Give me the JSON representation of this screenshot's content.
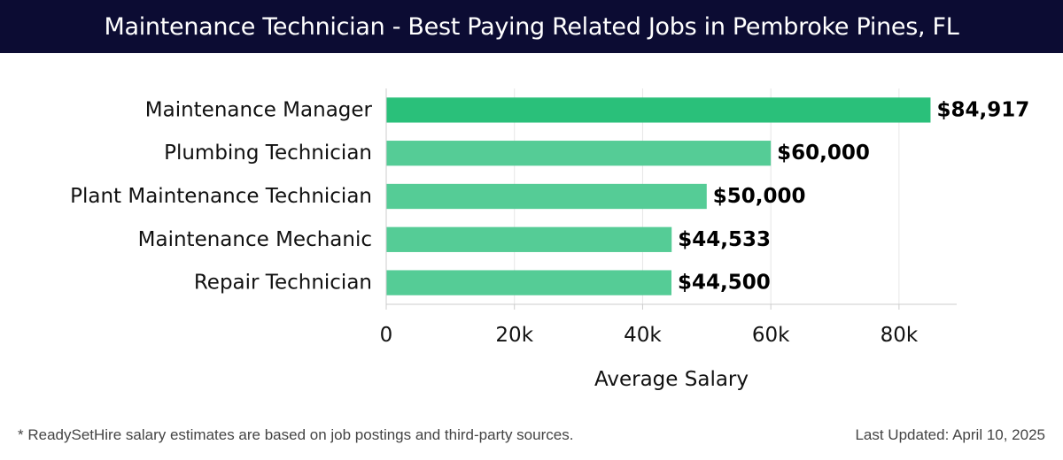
{
  "header": {
    "title": "Maintenance Technician - Best Paying Related Jobs in Pembroke Pines, FL"
  },
  "chart_data": {
    "type": "bar",
    "orientation": "horizontal",
    "categories": [
      "Maintenance Manager",
      "Plumbing Technician",
      "Plant Maintenance Technician",
      "Maintenance Mechanic",
      "Repair Technician"
    ],
    "values": [
      84917,
      60000,
      50000,
      44533,
      44500
    ],
    "data_labels": [
      "$84,917",
      "$60,000",
      "$50,000",
      "$44,533",
      "$44,500"
    ],
    "xlabel": "Average Salary",
    "ylabel": "",
    "xlim": [
      0,
      89000
    ],
    "xticks": [
      0,
      20000,
      40000,
      60000,
      80000
    ],
    "xtick_labels": [
      "0",
      "20k",
      "40k",
      "60k",
      "80k"
    ],
    "grid": "vertical",
    "colors": {
      "highlight": "#2ac07a",
      "bar": "#55cc96"
    }
  },
  "footer": {
    "note": "* ReadySetHire salary estimates are based on job postings and third-party sources.",
    "updated": "Last Updated: April 10, 2025"
  }
}
